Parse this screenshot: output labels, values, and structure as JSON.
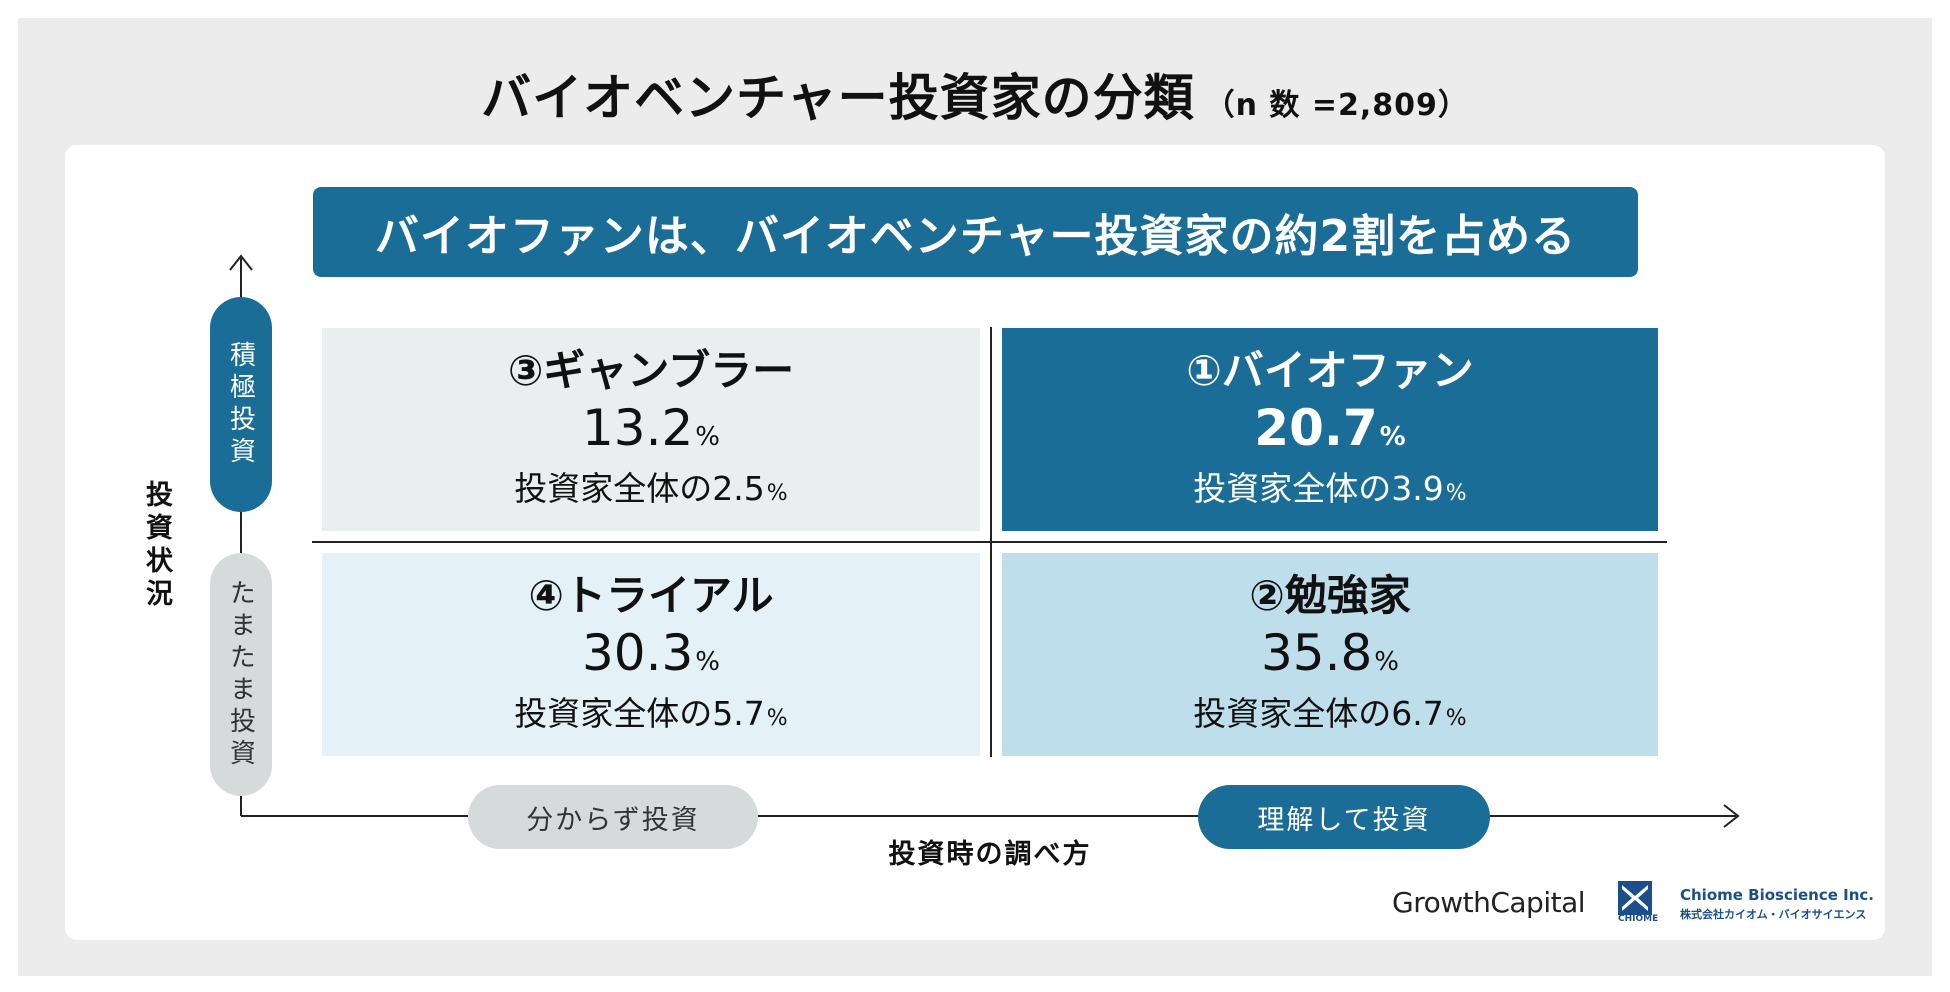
{
  "title": "バイオベンチャー投資家の分類",
  "sample_size": "（n 数 =2,809）",
  "banner": "バイオファンは、バイオベンチャー投資家の約2割を占める",
  "y_axis": {
    "label": "投資状況",
    "top_pill": "積極投資",
    "bottom_pill": "たまたま投資"
  },
  "x_axis": {
    "label": "投資時の調べ方",
    "left_pill": "分からず投資",
    "right_pill": "理解して投資"
  },
  "quadrants": {
    "q3": {
      "name": "③ギャンブラー",
      "pct": "13.2",
      "unit": "%",
      "sub": "投資家全体の2.5"
    },
    "q1": {
      "name": "①バイオファン",
      "pct": "20.7",
      "unit": "%",
      "sub": "投資家全体の3.9"
    },
    "q4": {
      "name": "④トライアル",
      "pct": "30.3",
      "unit": "%",
      "sub": "投資家全体の5.7"
    },
    "q2": {
      "name": "②勉強家",
      "pct": "35.8",
      "unit": "%",
      "sub": "投資家全体の6.7"
    }
  },
  "logos": {
    "growth_capital": "GrowthCapital",
    "chiome_mark": "CHIOME",
    "chiome_name": "Chiome Bioscience Inc.",
    "chiome_jp": "株式会社カイオム・バイオサイエンス"
  },
  "colors": {
    "primary": "#1a6d96",
    "light_blue": "#bfdeec",
    "pale_blue": "#e4f2f8",
    "gray": "#ebeeef",
    "pill_gray": "#d6dada"
  }
}
